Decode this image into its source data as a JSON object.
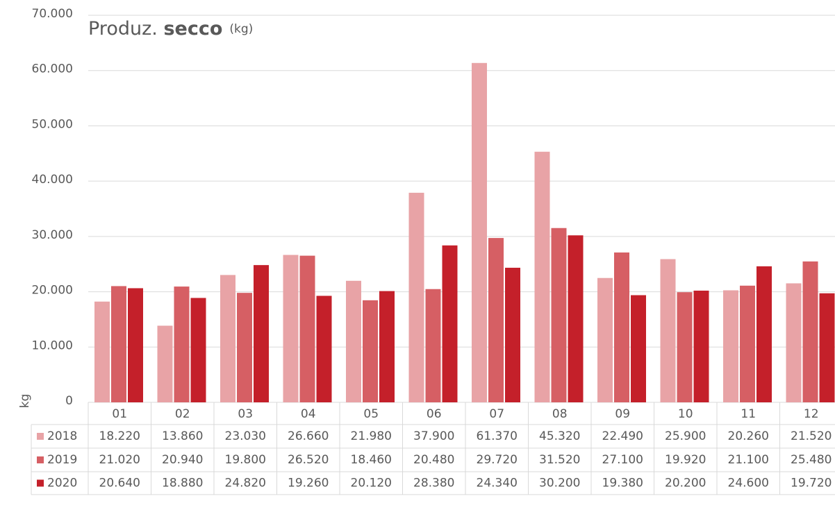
{
  "chart_data": {
    "type": "bar",
    "title": "Produz.",
    "title_bold": "secco",
    "title_unit": "(kg)",
    "y_label": "kg",
    "categories": [
      "01",
      "02",
      "03",
      "04",
      "05",
      "06",
      "07",
      "08",
      "09",
      "10",
      "11",
      "12"
    ],
    "series": [
      {
        "name": "2018",
        "color": "#e8a3a6",
        "values": [
          18220,
          13860,
          23030,
          26660,
          21980,
          37900,
          61370,
          45320,
          22490,
          25900,
          20260,
          21520
        ],
        "value_labels": [
          "18.220",
          "13.860",
          "23.030",
          "26.660",
          "21.980",
          "37.900",
          "61.370",
          "45.320",
          "22.490",
          "25.900",
          "20.260",
          "21.520"
        ]
      },
      {
        "name": "2019",
        "color": "#d65f64",
        "values": [
          21020,
          20940,
          19800,
          26520,
          18460,
          20480,
          29720,
          31520,
          27100,
          19920,
          21100,
          25480
        ],
        "value_labels": [
          "21.020",
          "20.940",
          "19.800",
          "26.520",
          "18.460",
          "20.480",
          "29.720",
          "31.520",
          "27.100",
          "19.920",
          "21.100",
          "25.480"
        ]
      },
      {
        "name": "2020",
        "color": "#c4202a",
        "values": [
          20640,
          18880,
          24820,
          19260,
          20120,
          28380,
          24340,
          30200,
          19380,
          20200,
          24600,
          19720
        ],
        "value_labels": [
          "20.640",
          "18.880",
          "24.820",
          "19.260",
          "20.120",
          "28.380",
          "24.340",
          "30.200",
          "19.380",
          "20.200",
          "24.600",
          "19.720"
        ]
      }
    ],
    "ylim": [
      0,
      70000
    ],
    "yticks": [
      0,
      {
        "value": 10000,
        "label": "10.000"
      },
      {
        "value": 20000,
        "label": "20.000"
      },
      {
        "value": 30000,
        "label": "30.000"
      },
      {
        "value": 40000,
        "label": "40.000"
      },
      {
        "value": 50000,
        "label": "50.000"
      },
      {
        "value": 60000,
        "label": "60.000"
      },
      {
        "value": 70000,
        "label": "70.000"
      }
    ],
    "grid": true
  }
}
